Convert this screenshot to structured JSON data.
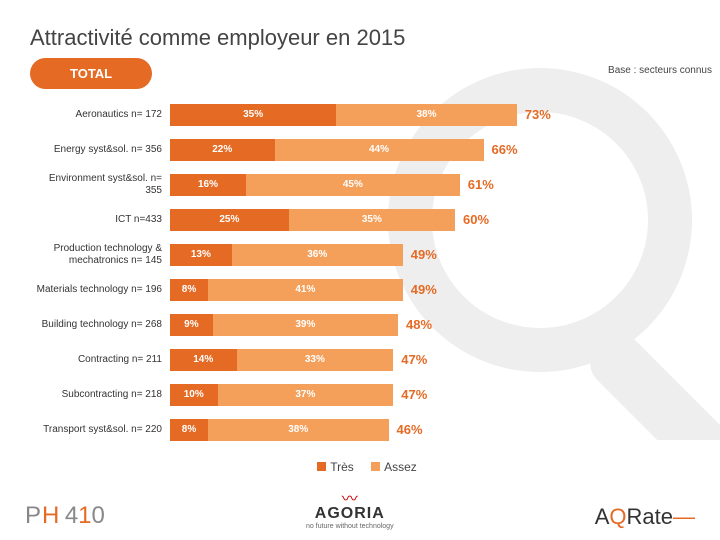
{
  "title": "Attractivité comme employeur en 2015",
  "base": "Base : secteurs connus",
  "totalLabel": "TOTAL",
  "legend": {
    "tres": "Très",
    "assez": "Assez"
  },
  "colors": {
    "tres": "#e56a24",
    "assez": "#f4a05a",
    "totalText": "#e56a24",
    "pill": "#e56a24"
  },
  "chart": {
    "barAreaPx": 380,
    "barHeight": 22,
    "scaleMax": 80,
    "rows": [
      {
        "label": "Aeronautics n= 172",
        "tres": 35,
        "assez": 38,
        "total": 73
      },
      {
        "label": "Energy syst&sol. n= 356",
        "tres": 22,
        "assez": 44,
        "total": 66
      },
      {
        "label": "Environment syst&sol. n= 355",
        "tres": 16,
        "assez": 45,
        "total": 61
      },
      {
        "label": "ICT n=433",
        "tres": 25,
        "assez": 35,
        "total": 60
      },
      {
        "label": "Production technology & mechatronics n= 145",
        "tres": 13,
        "assez": 36,
        "total": 49
      },
      {
        "label": "Materials technology n= 196",
        "tres": 8,
        "assez": 41,
        "total": 49
      },
      {
        "label": "Building technology n= 268",
        "tres": 9,
        "assez": 39,
        "total": 48
      },
      {
        "label": "Contracting n= 211",
        "tres": 14,
        "assez": 33,
        "total": 47
      },
      {
        "label": "Subcontracting n= 218",
        "tres": 10,
        "assez": 37,
        "total": 47
      },
      {
        "label": "Transport syst&sol. n= 220",
        "tres": 8,
        "assez": 38,
        "total": 46
      }
    ]
  },
  "logos": {
    "ph410": "PH 410",
    "agoriaName": "AGORIA",
    "agoriaTag": "no future without technology",
    "aqrate": "AQRate"
  }
}
